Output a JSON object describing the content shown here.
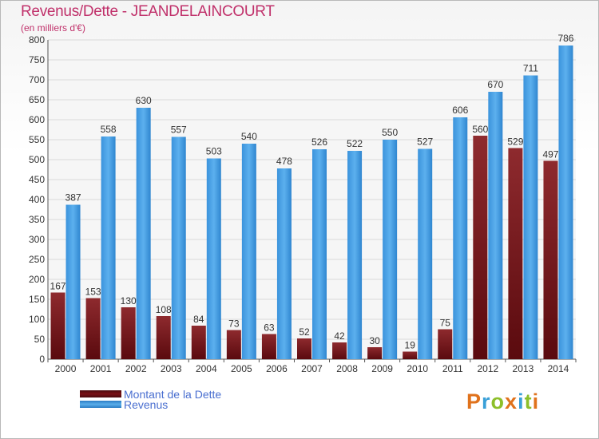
{
  "header": {
    "title": "Revenus/Dette - JEANDELAINCOURT",
    "subtitle": "(en milliers d'€)"
  },
  "legend": {
    "items": [
      {
        "label": "Montant de la Dette",
        "color": "#7a1016"
      },
      {
        "label": "Revenus",
        "color": "#3f9be3"
      }
    ]
  },
  "logo": {
    "text": "Proxiti",
    "colors": [
      "#e0721c",
      "#3aa0d8",
      "#8dbf2a",
      "#e0721c",
      "#3aa0d8",
      "#8dbf2a",
      "#e0721c"
    ]
  },
  "chart_data": {
    "type": "bar",
    "title": "Revenus/Dette - JEANDELAINCOURT",
    "subtitle": "(en milliers d'€)",
    "categories": [
      "2000",
      "2001",
      "2002",
      "2003",
      "2004",
      "2005",
      "2006",
      "2007",
      "2008",
      "2009",
      "2010",
      "2011",
      "2012",
      "2013",
      "2014"
    ],
    "series": [
      {
        "name": "Montant de la Dette",
        "color": "#7a1016",
        "values": [
          167,
          153,
          130,
          108,
          84,
          73,
          63,
          52,
          42,
          30,
          19,
          75,
          560,
          529,
          497
        ]
      },
      {
        "name": "Revenus",
        "color": "#3f9be3",
        "values": [
          387,
          558,
          630,
          557,
          503,
          540,
          478,
          526,
          522,
          550,
          527,
          606,
          670,
          711,
          786
        ]
      }
    ],
    "ylim": [
      0,
      800
    ],
    "yticks": [
      0,
      50,
      100,
      150,
      200,
      250,
      300,
      350,
      400,
      450,
      500,
      550,
      600,
      650,
      700,
      750,
      800
    ],
    "grid": true,
    "legend_position": "bottom-left"
  }
}
